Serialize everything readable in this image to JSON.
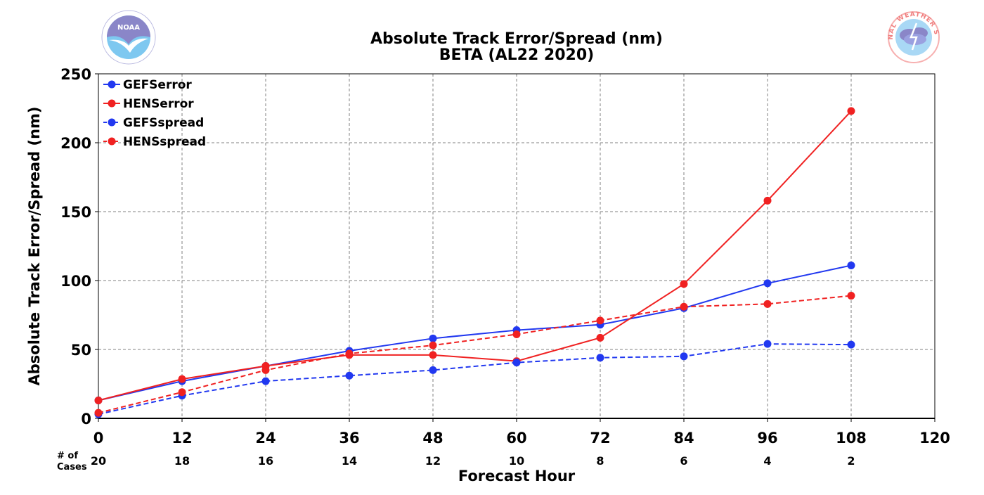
{
  "chart_data": {
    "type": "line",
    "title": "Absolute Track Error/Spread (nm)",
    "subtitle": "BETA (AL22 2020)",
    "xlabel": "Forecast Hour",
    "ylabel": "Absolute Track Error/Spread (nm)",
    "xlim": [
      0,
      120
    ],
    "ylim": [
      0,
      250
    ],
    "x_ticks": [
      0,
      12,
      24,
      36,
      48,
      60,
      72,
      84,
      96,
      108,
      120
    ],
    "y_ticks": [
      0,
      50,
      100,
      150,
      200,
      250
    ],
    "grid": true,
    "legend_position": "top-left",
    "cases_label_line1": "# of",
    "cases_label_line2": "Cases",
    "cases": [
      {
        "x": 0,
        "n": "20"
      },
      {
        "x": 12,
        "n": "18"
      },
      {
        "x": 24,
        "n": "16"
      },
      {
        "x": 36,
        "n": "14"
      },
      {
        "x": 48,
        "n": "12"
      },
      {
        "x": 60,
        "n": "10"
      },
      {
        "x": 72,
        "n": "8"
      },
      {
        "x": 84,
        "n": "6"
      },
      {
        "x": 96,
        "n": "4"
      },
      {
        "x": 108,
        "n": "2"
      }
    ],
    "x": [
      0,
      12,
      24,
      36,
      48,
      60,
      72,
      84,
      96,
      108
    ],
    "series": [
      {
        "name": "GEFSerror",
        "color": "#2138f0",
        "dash": false,
        "values": [
          13,
          27,
          38,
          49,
          58,
          64,
          68,
          80,
          98,
          111
        ]
      },
      {
        "name": "HENSerror",
        "color": "#f02121",
        "dash": false,
        "values": [
          13,
          28.5,
          38,
          46,
          46,
          41.5,
          58.5,
          97.5,
          158,
          223
        ]
      },
      {
        "name": "GEFSspread",
        "color": "#2138f0",
        "dash": true,
        "values": [
          3,
          16.5,
          27,
          31,
          35,
          40.5,
          44,
          45,
          54,
          53.5
        ]
      },
      {
        "name": "HENSspread",
        "color": "#f02121",
        "dash": true,
        "values": [
          4,
          19,
          35,
          47,
          53,
          61,
          71,
          81,
          83,
          89
        ]
      }
    ]
  },
  "logos": {
    "noaa": {
      "name": "NOAA",
      "text": "NOAA"
    },
    "nws": {
      "name": "NWS",
      "text": "NATIONAL WEATHER SERVICE"
    }
  }
}
